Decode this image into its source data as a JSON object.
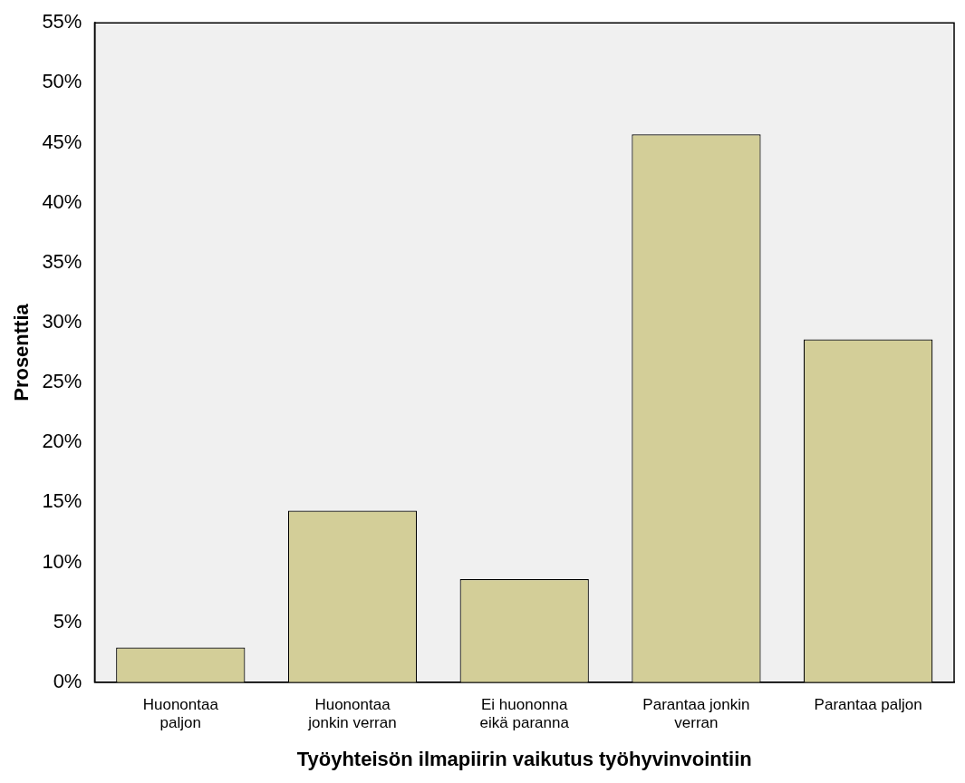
{
  "chart_data": {
    "type": "bar",
    "xlabel": "Työyhteisön ilmapiirin vaikutus työhyvinvointiin",
    "ylabel": "Prosenttia",
    "categories": [
      "Huonontaa paljon",
      "Huonontaa jonkin verran",
      "Ei huononna eikä paranna",
      "Parantaa jonkin verran",
      "Parantaa paljon"
    ],
    "values": [
      2.9,
      14.3,
      8.6,
      45.7,
      28.6
    ],
    "color": "#d3ce98",
    "ylim": [
      0,
      55
    ],
    "yticks": [
      {
        "value": 0,
        "label": "0%"
      },
      {
        "value": 5,
        "label": "5%"
      },
      {
        "value": 10,
        "label": "10%"
      },
      {
        "value": 15,
        "label": "15%"
      },
      {
        "value": 20,
        "label": "20%"
      },
      {
        "value": 25,
        "label": "25%"
      },
      {
        "value": 30,
        "label": "30%"
      },
      {
        "value": 35,
        "label": "35%"
      },
      {
        "value": 40,
        "label": "40%"
      },
      {
        "value": 45,
        "label": "45%"
      },
      {
        "value": 50,
        "label": "50%"
      },
      {
        "value": 55,
        "label": "55%"
      }
    ],
    "grid": false,
    "legend": false
  }
}
